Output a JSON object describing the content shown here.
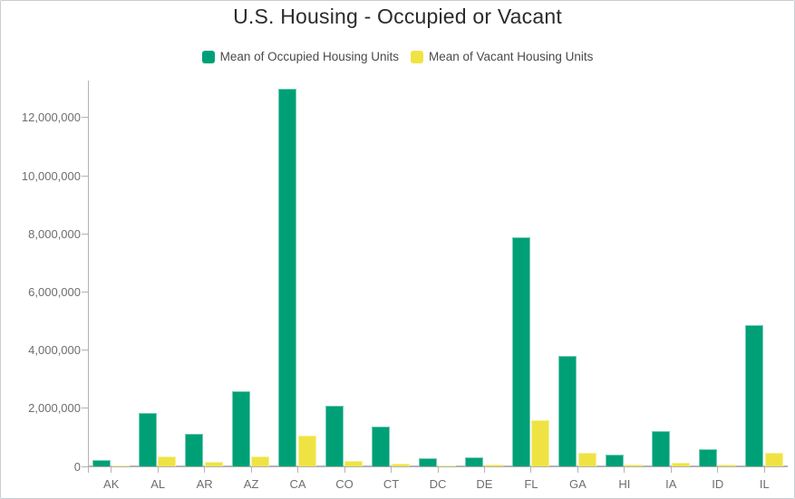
{
  "title": "U.S. Housing - Occupied or Vacant",
  "colors": {
    "occupied": "#00a077",
    "vacant": "#efe344",
    "axis": "#b3b3b3",
    "tick_label": "#6e6e6e",
    "title_text": "#2b2b2b",
    "legend_text": "#4a4a4a"
  },
  "chart_data": {
    "type": "bar",
    "title": "U.S. Housing - Occupied or Vacant",
    "categories": [
      "AK",
      "AL",
      "AR",
      "AZ",
      "CA",
      "CO",
      "CT",
      "DC",
      "DE",
      "FL",
      "GA",
      "HI",
      "IA",
      "ID",
      "IL"
    ],
    "series": [
      {
        "name": "Mean of Occupied Housing Units",
        "color": "#00a077",
        "values": [
          230000,
          1850000,
          1130000,
          2580000,
          13000000,
          2080000,
          1360000,
          270000,
          320000,
          7880000,
          3800000,
          420000,
          1230000,
          600000,
          4850000
        ]
      },
      {
        "name": "Mean of Vacant Housing Units",
        "color": "#efe344",
        "values": [
          40000,
          330000,
          160000,
          340000,
          1060000,
          200000,
          95000,
          25000,
          70000,
          1580000,
          460000,
          60000,
          125000,
          70000,
          460000
        ]
      }
    ],
    "xlabel": "",
    "ylabel": "",
    "ylim": [
      0,
      13200000
    ],
    "yticks": [
      0,
      2000000,
      4000000,
      6000000,
      8000000,
      10000000,
      12000000
    ],
    "grid": false,
    "legend_position": "top"
  }
}
